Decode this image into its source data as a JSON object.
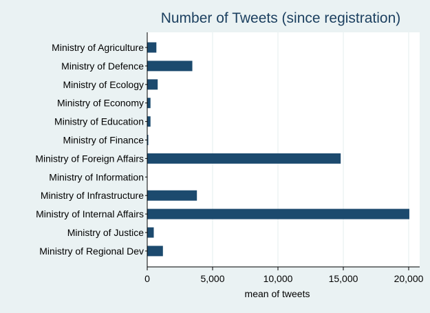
{
  "chart_data": {
    "type": "bar",
    "orientation": "horizontal",
    "title": "Number of Tweets (since registration)",
    "xlabel": "mean of tweets",
    "ylabel": "",
    "xlim": [
      0,
      20000
    ],
    "x_ticks": [
      0,
      5000,
      10000,
      15000,
      20000
    ],
    "x_tick_labels": [
      "0",
      "5,000",
      "10,000",
      "15,000",
      "20,000"
    ],
    "grid": true,
    "legend": "none",
    "categories": [
      "Ministry of Agriculture",
      "Ministry of Defence",
      "Ministry of Ecology",
      "Ministry of Economy",
      "Ministry of Education",
      "Ministry of Finance",
      "Ministry of Foreign Affairs",
      "Ministry of Information",
      "Ministry of Infrastructure",
      "Ministry of Internal Affairs",
      "Ministry of Justice",
      "Ministry of Regional Dev"
    ],
    "values": [
      700,
      3450,
      800,
      250,
      250,
      80,
      14800,
      0,
      3800,
      20050,
      500,
      1200
    ],
    "colors": {
      "background": "#eaf2f3",
      "plot_area": "#ffffff",
      "bar": "#1c4a6e",
      "grid": "#e3ecee",
      "title": "#1b3f5f",
      "text": "#000000"
    }
  }
}
